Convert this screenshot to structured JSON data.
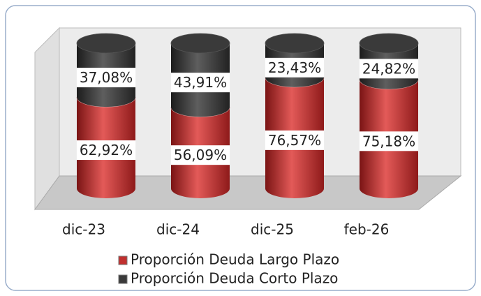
{
  "chart_data": {
    "type": "cylinder_stacked",
    "categories": [
      "dic-23",
      "dic-24",
      "dic-25",
      "feb-26"
    ],
    "series": [
      {
        "name": "Proporción Deuda Largo Plazo",
        "color": "#c0302f",
        "values": [
          62.92,
          56.09,
          76.57,
          75.18
        ],
        "value_labels": [
          "62,92%",
          "56,09%",
          "76,57%",
          "75,18%"
        ]
      },
      {
        "name": "Proporción Deuda Corto Plazo",
        "color": "#3a3a3a",
        "values": [
          37.08,
          43.91,
          23.43,
          24.82
        ],
        "value_labels": [
          "37,08%",
          "43,91%",
          "23,43%",
          "24,82%"
        ]
      }
    ]
  }
}
